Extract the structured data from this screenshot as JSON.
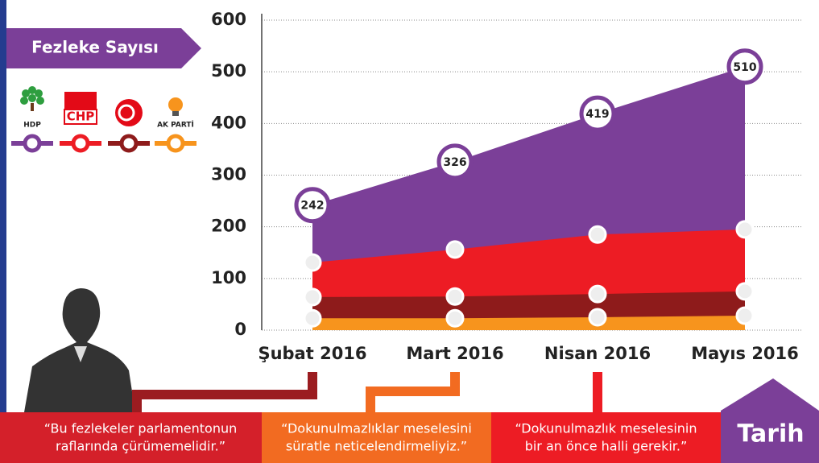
{
  "chart_data": {
    "type": "area",
    "y_label": "Fezleke Sayısı",
    "x_label": "Tarih",
    "categories": [
      "Şubat 2016",
      "Mart 2016",
      "Nisan 2016",
      "Mayıs 2016"
    ],
    "series": [
      {
        "name": "HDP",
        "color": "#7b3f98",
        "values": [
          242,
          326,
          419,
          510
        ]
      },
      {
        "name": "CHP",
        "color": "#ed1c24",
        "values": [
          131,
          156,
          185,
          195
        ]
      },
      {
        "name": null,
        "color": "#8e1b1b",
        "values": [
          64,
          65,
          70,
          75
        ]
      },
      {
        "name": "AK PARTİ",
        "color": "#f7941d",
        "values": [
          23,
          23,
          25,
          28
        ]
      }
    ],
    "ylim": [
      0,
      600
    ],
    "yticks": [
      0,
      100,
      200,
      300,
      400,
      500,
      600
    ],
    "grid": true,
    "quotes": [
      [
        "“Bu fezlekeler parlamentonun",
        "raflarında çürümemelidir.”"
      ],
      [
        "“Dokunulmazlıklar meselesini",
        "süratle neticelendirmeliyiz.”"
      ],
      [
        "“Dokunulmazlık meselesinin",
        "bir an önce halli gerekir.”"
      ]
    ]
  }
}
